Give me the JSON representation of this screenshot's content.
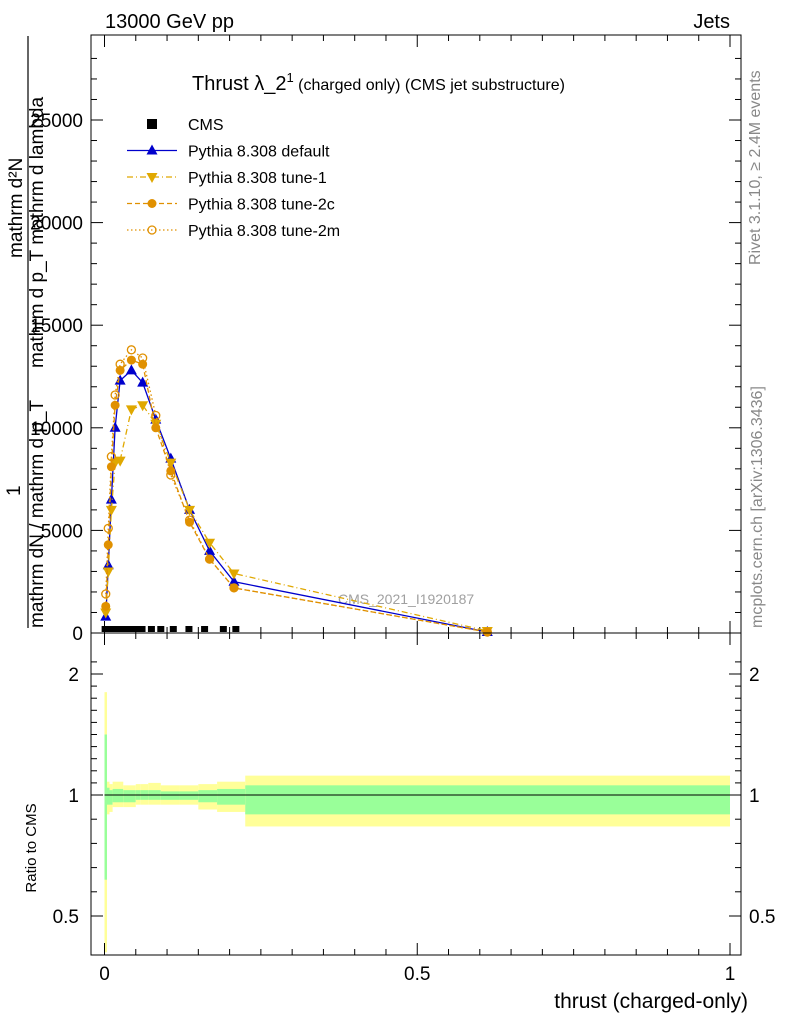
{
  "header": {
    "energy": "13000 GeV pp",
    "category": "Jets",
    "rivet_note": "Rivet 3.1.10, ≥ 2.4M events",
    "source_note": "mcplots.cern.ch [arXiv:1306.3436]",
    "watermark": "CMS_2021_I1920187"
  },
  "main_panel": {
    "title_main": "Thrust λ_2",
    "title_sup": "1",
    "title_rest": " (charged only) (CMS jet substructure)",
    "ylabel_lines": [
      "mathrm d²N",
      "mathrm d p_T mathrm d lambda",
      "1",
      "mathrm dN / mathrm d p_T"
    ],
    "yticks": [
      "0",
      "5000",
      "10000",
      "15000",
      "20000",
      "25000"
    ]
  },
  "ratio_panel": {
    "ylabel": "Ratio to CMS",
    "yticks": [
      "0.5",
      "1",
      "2"
    ],
    "xticks": [
      "0",
      "0.5",
      "1"
    ],
    "xlabel": "thrust (charged-only)"
  },
  "legend": [
    {
      "name": "CMS",
      "color": "#000000",
      "marker": "square",
      "line": "none"
    },
    {
      "name": "Pythia 8.308 default",
      "color": "#0000cc",
      "marker": "triangle-up",
      "line": "solid"
    },
    {
      "name": "Pythia 8.308 tune-1",
      "color": "#e0a800",
      "marker": "triangle-down",
      "line": "dashdot"
    },
    {
      "name": "Pythia 8.308 tune-2c",
      "color": "#e09000",
      "marker": "circle",
      "line": "dashed"
    },
    {
      "name": "Pythia 8.308 tune-2m",
      "color": "#e09000",
      "marker": "circle-open",
      "line": "dotted"
    }
  ],
  "chart_data": {
    "type": "line",
    "xlim": [
      -0.02,
      1.0
    ],
    "ylim": [
      0,
      29000
    ],
    "ratio_ylim": [
      0.5,
      2.2
    ],
    "series": [
      {
        "name": "CMS",
        "x": [
          0.001,
          0.004,
          0.008,
          0.013,
          0.018,
          0.024,
          0.031,
          0.04,
          0.05,
          0.06,
          0.075,
          0.09,
          0.11,
          0.135,
          0.16,
          0.19,
          0.21
        ],
        "y": [
          0,
          0,
          0,
          0,
          0,
          0,
          0,
          0,
          0,
          0,
          0,
          0,
          0,
          0,
          0,
          0,
          0
        ]
      },
      {
        "name": "Pythia 8.308 default",
        "x": [
          0.002,
          0.006,
          0.011,
          0.017,
          0.025,
          0.043,
          0.061,
          0.082,
          0.106,
          0.136,
          0.168,
          0.207,
          0.612
        ],
        "y": [
          800,
          3300,
          6500,
          10000,
          12300,
          12800,
          12200,
          10400,
          8500,
          6000,
          4000,
          2500,
          50
        ]
      },
      {
        "name": "Pythia 8.308 tune-1",
        "x": [
          0.002,
          0.006,
          0.011,
          0.017,
          0.025,
          0.043,
          0.061,
          0.082,
          0.106,
          0.136,
          0.168,
          0.207,
          0.612
        ],
        "y": [
          1000,
          3000,
          6000,
          8300,
          8400,
          10900,
          11100,
          10200,
          8300,
          6000,
          4400,
          2900,
          100
        ]
      },
      {
        "name": "Pythia 8.308 tune-2c",
        "x": [
          0.002,
          0.006,
          0.011,
          0.017,
          0.025,
          0.043,
          0.061,
          0.082,
          0.106,
          0.136,
          0.168,
          0.207,
          0.612
        ],
        "y": [
          1300,
          4300,
          8100,
          11100,
          12800,
          13300,
          13100,
          10000,
          7900,
          5400,
          3600,
          2200,
          50
        ]
      },
      {
        "name": "Pythia 8.308 tune-2m",
        "x": [
          0.002,
          0.006,
          0.011,
          0.017,
          0.025,
          0.043,
          0.061,
          0.082,
          0.106,
          0.136,
          0.168,
          0.207,
          0.612
        ],
        "y": [
          1900,
          5100,
          8600,
          11600,
          13100,
          13800,
          13400,
          10600,
          7700,
          5500,
          3600,
          2200,
          50
        ]
      }
    ],
    "ratio_bands": {
      "edges": [
        0.0,
        0.004,
        0.008,
        0.013,
        0.03,
        0.05,
        0.058,
        0.07,
        0.09,
        0.12,
        0.15,
        0.18,
        0.225,
        1.0
      ],
      "green_lo": [
        0.65,
        0.96,
        0.96,
        0.97,
        0.97,
        0.98,
        0.98,
        0.98,
        0.98,
        0.98,
        0.97,
        0.96,
        0.92
      ],
      "green_hi": [
        1.5,
        1.06,
        1.04,
        1.05,
        1.04,
        1.04,
        1.04,
        1.04,
        1.03,
        1.03,
        1.04,
        1.05,
        1.08
      ],
      "yellow_lo": [
        0.35,
        0.92,
        0.93,
        0.95,
        0.95,
        0.96,
        0.96,
        0.96,
        0.96,
        0.96,
        0.94,
        0.93,
        0.87
      ],
      "yellow_hi": [
        1.85,
        1.11,
        1.09,
        1.11,
        1.08,
        1.09,
        1.09,
        1.1,
        1.08,
        1.08,
        1.09,
        1.11,
        1.16
      ]
    }
  }
}
